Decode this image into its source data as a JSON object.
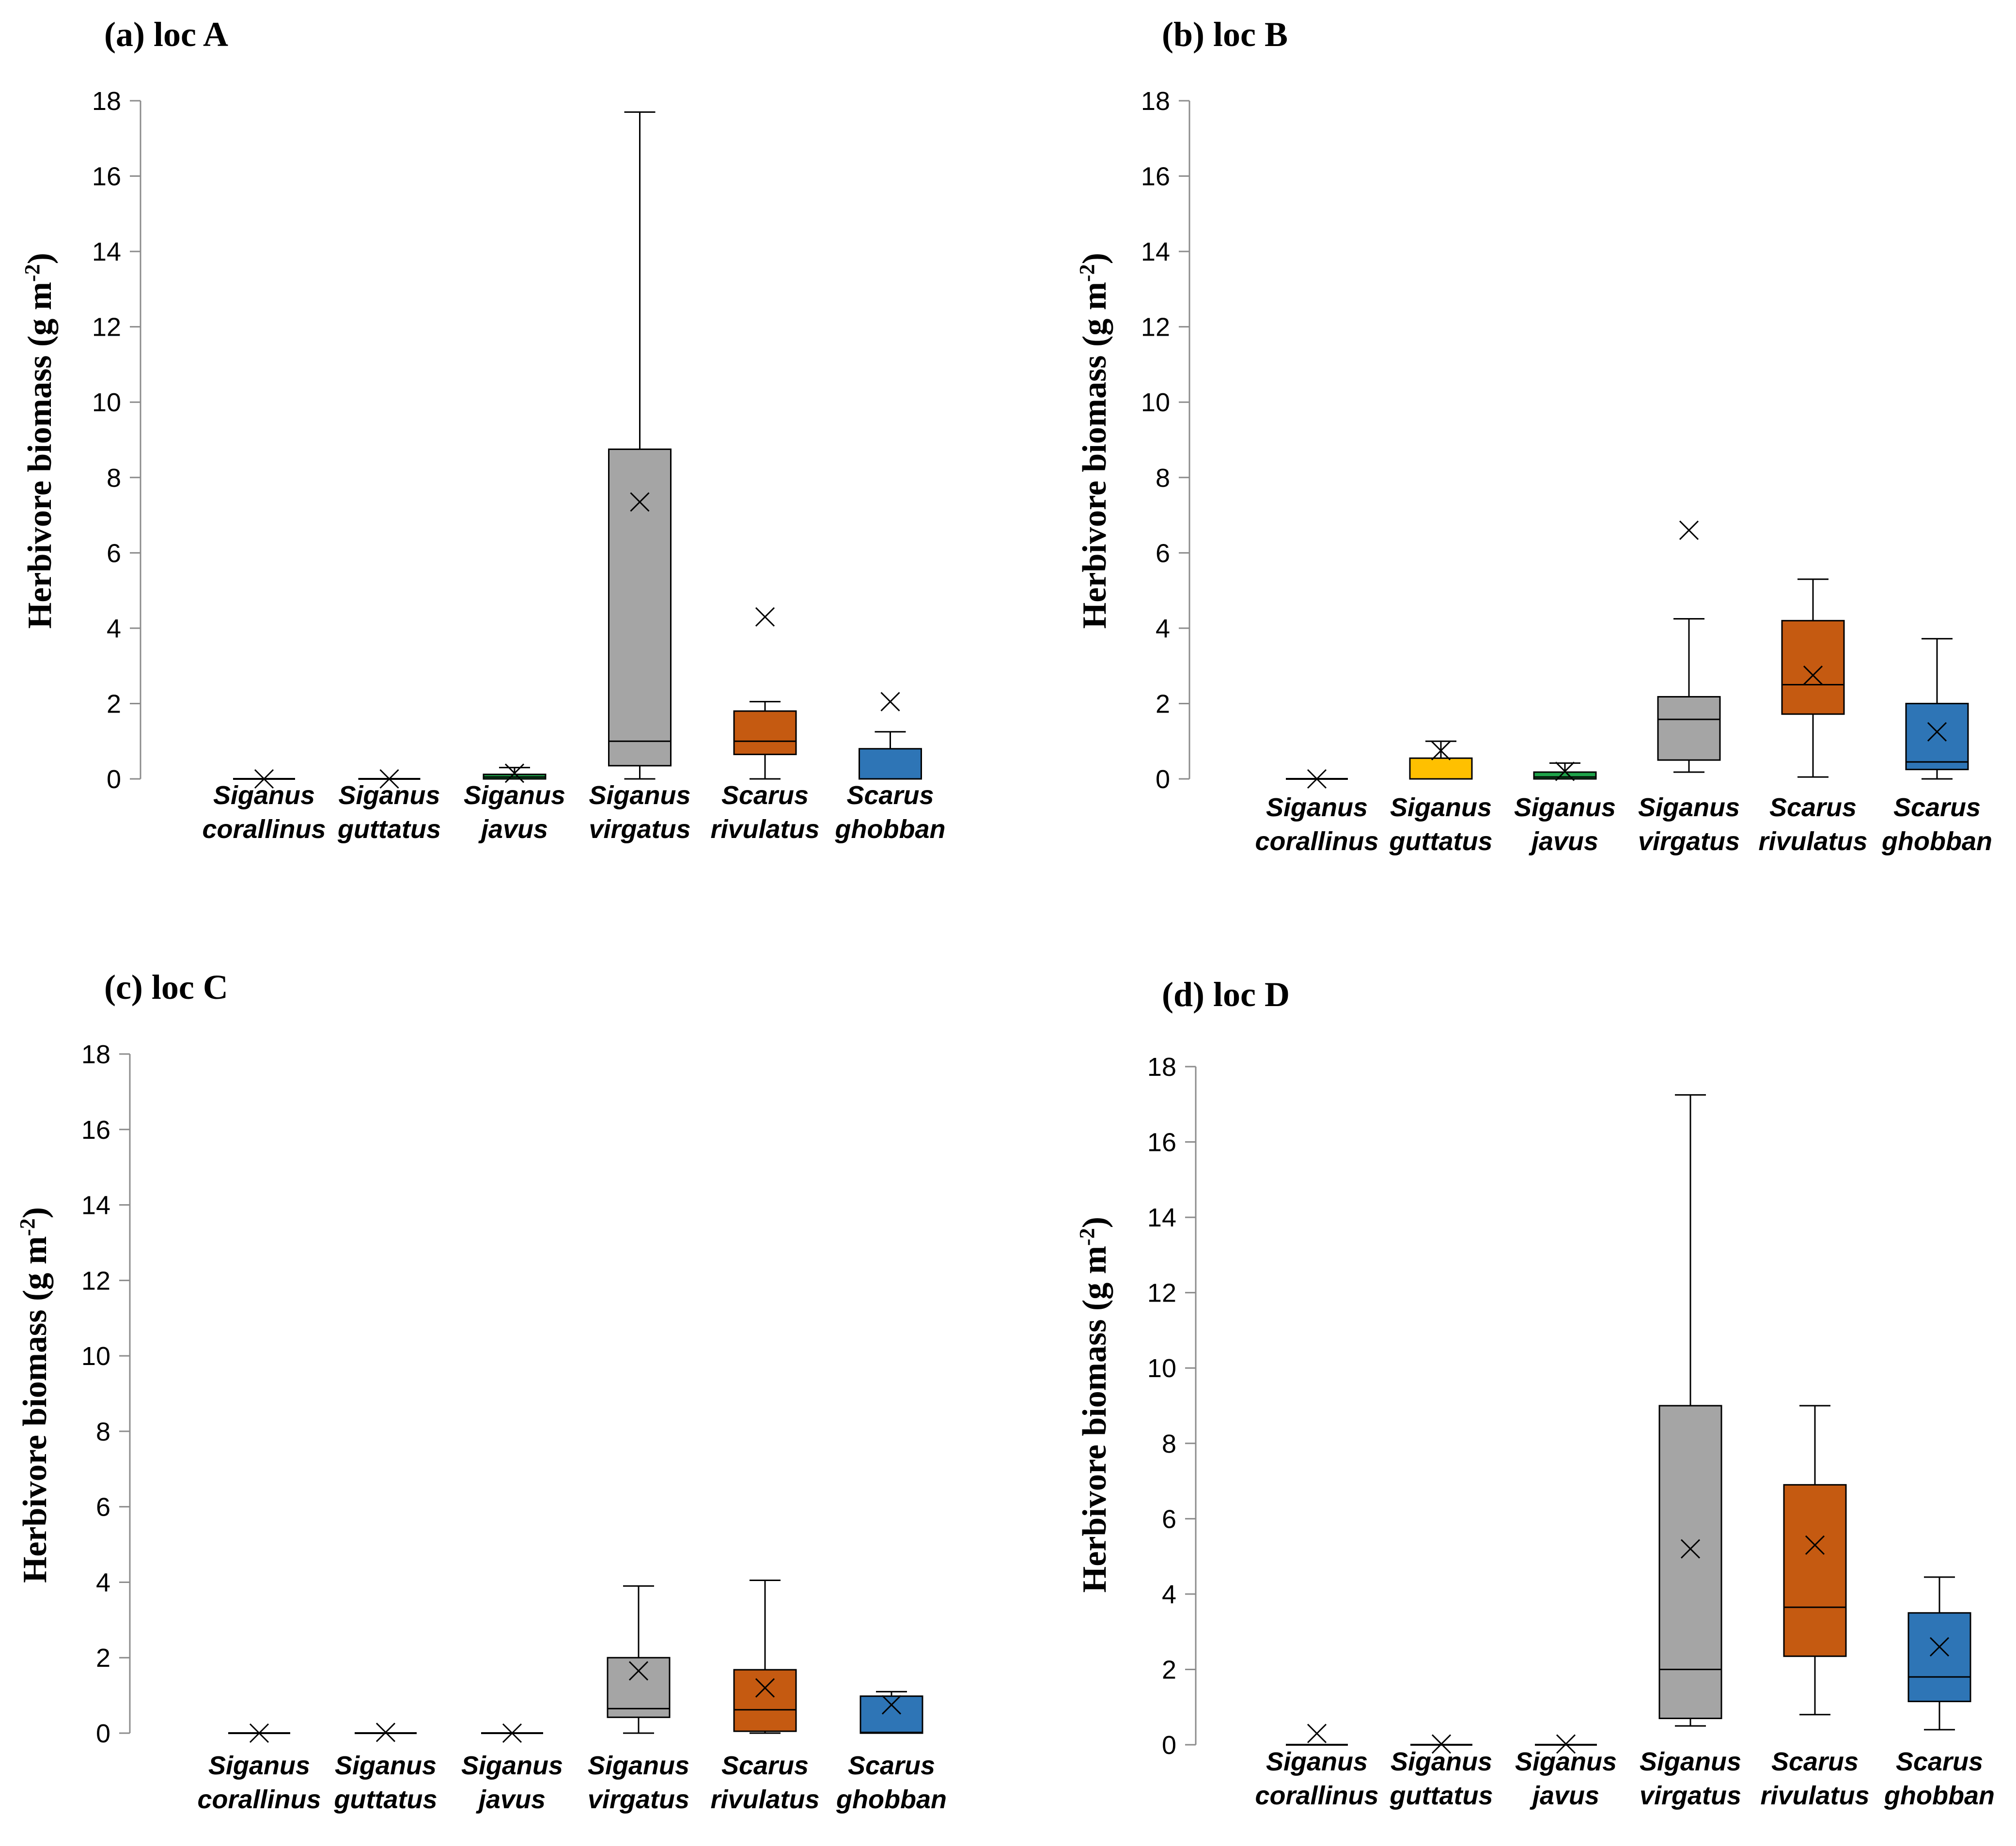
{
  "figure": {
    "ylabel": "Herbivore biomass (g m",
    "ylabel_sup": "-2",
    "ylabel_close": ")"
  },
  "colors": {
    "Siganus corallinus": "#ffffff",
    "Siganus guttatus": "#ffc000",
    "Siganus javus": "#1fa34a",
    "Siganus virgatus": "#a5a5a5",
    "Scarus rivulatus": "#c55a11",
    "Scarus ghobban": "#2e75b6"
  },
  "chart_data": [
    {
      "type": "box",
      "title": "(a) loc A",
      "ylim": [
        0,
        18
      ],
      "yticks": [
        0,
        2,
        4,
        6,
        8,
        10,
        12,
        14,
        16,
        18
      ],
      "categories": [
        {
          "line1": "Siganus",
          "line2": "corallinus",
          "min": 0,
          "q1": 0,
          "median": 0,
          "q3": 0,
          "max": 0,
          "mean": 0
        },
        {
          "line1": "Siganus",
          "line2": "guttatus",
          "min": 0,
          "q1": 0,
          "median": 0,
          "q3": 0,
          "max": 0,
          "mean": 0
        },
        {
          "line1": "Siganus",
          "line2": "javus",
          "min": 0,
          "q1": 0,
          "median": 0.05,
          "q3": 0.12,
          "max": 0.3,
          "mean": 0.15
        },
        {
          "line1": "Siganus",
          "line2": "virgatus",
          "min": 0,
          "q1": 0.35,
          "median": 1.0,
          "q3": 8.75,
          "max": 17.7,
          "mean": 7.35
        },
        {
          "line1": "Scarus",
          "line2": "rivulatus",
          "min": 0,
          "q1": 0.65,
          "median": 1.0,
          "q3": 1.8,
          "max": 2.05,
          "mean": 4.3
        },
        {
          "line1": "Scarus",
          "line2": "ghobban",
          "min": 0,
          "q1": 0,
          "median": 0,
          "q3": 0.8,
          "max": 1.25,
          "mean": 2.05
        }
      ]
    },
    {
      "type": "box",
      "title": "(b) loc B",
      "ylim": [
        0,
        18
      ],
      "yticks": [
        0,
        2,
        4,
        6,
        8,
        10,
        12,
        14,
        16,
        18
      ],
      "categories": [
        {
          "line1": "Siganus",
          "line2": "corallinus",
          "min": 0,
          "q1": 0,
          "median": 0,
          "q3": 0,
          "max": 0,
          "mean": 0
        },
        {
          "line1": "Siganus",
          "line2": "guttatus",
          "min": 0,
          "q1": 0,
          "median": 0,
          "q3": 0.55,
          "max": 1.0,
          "mean": 0.75
        },
        {
          "line1": "Siganus",
          "line2": "javus",
          "min": 0,
          "q1": 0,
          "median": 0.05,
          "q3": 0.18,
          "max": 0.42,
          "mean": 0.2
        },
        {
          "line1": "Siganus",
          "line2": "virgatus",
          "min": 0.18,
          "q1": 0.5,
          "median": 1.58,
          "q3": 2.18,
          "max": 4.25,
          "mean": 6.6
        },
        {
          "line1": "Scarus",
          "line2": "rivulatus",
          "min": 0.05,
          "q1": 1.72,
          "median": 2.5,
          "q3": 4.2,
          "max": 5.3,
          "mean": 2.75
        },
        {
          "line1": "Scarus",
          "line2": "ghobban",
          "min": 0,
          "q1": 0.25,
          "median": 0.45,
          "q3": 2.0,
          "max": 3.72,
          "mean": 1.25
        }
      ]
    },
    {
      "type": "box",
      "title": "(c) loc C",
      "ylim": [
        0,
        18
      ],
      "yticks": [
        0,
        2,
        4,
        6,
        8,
        10,
        12,
        14,
        16,
        18
      ],
      "categories": [
        {
          "line1": "Siganus",
          "line2": "corallinus",
          "min": 0,
          "q1": 0,
          "median": 0,
          "q3": 0,
          "max": 0,
          "mean": 0
        },
        {
          "line1": "Siganus",
          "line2": "guttatus",
          "min": 0,
          "q1": 0,
          "median": 0,
          "q3": 0,
          "max": 0,
          "mean": 0.02
        },
        {
          "line1": "Siganus",
          "line2": "javus",
          "min": 0,
          "q1": 0,
          "median": 0,
          "q3": 0,
          "max": 0,
          "mean": 0
        },
        {
          "line1": "Siganus",
          "line2": "virgatus",
          "min": 0,
          "q1": 0.42,
          "median": 0.65,
          "q3": 2.0,
          "max": 3.9,
          "mean": 1.65
        },
        {
          "line1": "Scarus",
          "line2": "rivulatus",
          "min": 0,
          "q1": 0.05,
          "median": 0.62,
          "q3": 1.68,
          "max": 4.05,
          "mean": 1.2
        },
        {
          "line1": "Scarus",
          "line2": "ghobban",
          "min": 0,
          "q1": 0,
          "median": 0.02,
          "q3": 0.98,
          "max": 1.1,
          "mean": 0.75
        }
      ]
    },
    {
      "type": "box",
      "title": "(d) loc D",
      "ylim": [
        0,
        18
      ],
      "yticks": [
        0,
        2,
        4,
        6,
        8,
        10,
        12,
        14,
        16,
        18
      ],
      "categories": [
        {
          "line1": "Siganus",
          "line2": "corallinus",
          "min": 0,
          "q1": 0,
          "median": 0,
          "q3": 0,
          "max": 0,
          "mean": 0.3
        },
        {
          "line1": "Siganus",
          "line2": "guttatus",
          "min": 0,
          "q1": 0,
          "median": 0,
          "q3": 0,
          "max": 0,
          "mean": 0.02
        },
        {
          "line1": "Siganus",
          "line2": "javus",
          "min": 0,
          "q1": 0,
          "median": 0,
          "q3": 0,
          "max": 0,
          "mean": 0.02
        },
        {
          "line1": "Siganus",
          "line2": "virgatus",
          "min": 0.5,
          "q1": 0.7,
          "median": 2.0,
          "q3": 9.0,
          "max": 17.25,
          "mean": 5.2
        },
        {
          "line1": "Scarus",
          "line2": "rivulatus",
          "min": 0.8,
          "q1": 2.35,
          "median": 3.65,
          "q3": 6.9,
          "max": 9.0,
          "mean": 5.3
        },
        {
          "line1": "Scarus",
          "line2": "ghobban",
          "min": 0.4,
          "q1": 1.15,
          "median": 1.8,
          "q3": 3.5,
          "max": 4.45,
          "mean": 2.6
        }
      ]
    }
  ]
}
